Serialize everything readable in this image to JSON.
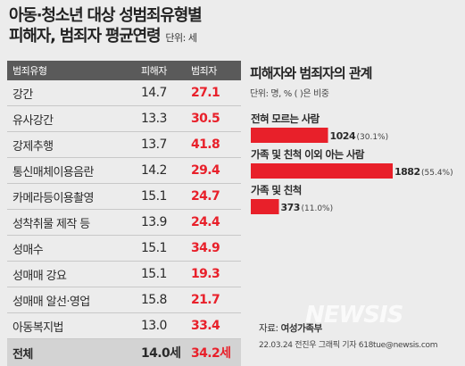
{
  "title": {
    "line1": "아동·청소년 대상 성범죄유형별",
    "line2": "피해자, 범죄자 평균연령",
    "unit": "단위: 세"
  },
  "table": {
    "headers": [
      "범죄유형",
      "피해자",
      "범죄자"
    ],
    "rows": [
      {
        "type": "강간",
        "victim": "14.7",
        "offender": "27.1"
      },
      {
        "type": "유사강간",
        "victim": "13.3",
        "offender": "30.5"
      },
      {
        "type": "강제추행",
        "victim": "13.7",
        "offender": "41.8"
      },
      {
        "type": "통신매체이용음란",
        "victim": "14.2",
        "offender": "29.4"
      },
      {
        "type": "카메라등이용촬영",
        "victim": "15.1",
        "offender": "24.7"
      },
      {
        "type": "성착취물 제작 등",
        "victim": "13.9",
        "offender": "24.4"
      },
      {
        "type": "성매수",
        "victim": "15.1",
        "offender": "34.9"
      },
      {
        "type": "성매매 강요",
        "victim": "15.1",
        "offender": "19.3"
      },
      {
        "type": "성매매 알선·영업",
        "victim": "15.8",
        "offender": "21.7"
      },
      {
        "type": "아동복지법",
        "victim": "13.0",
        "offender": "33.4"
      }
    ],
    "total": {
      "type": "전체",
      "victim": "14.0세",
      "offender": "34.2세"
    }
  },
  "chart_data": {
    "type": "bar",
    "title": "피해자와 범죄자의 관계",
    "subtitle": "단위: 명, % ( )은 비중",
    "categories": [
      "전혀 모르는 사람",
      "가족 및 친척 이외 아는 사람",
      "가족 및 친척"
    ],
    "values": [
      1024,
      1882,
      373
    ],
    "value_labels": [
      "1024",
      "1882",
      "373"
    ],
    "percent_labels": [
      "(30.1%)",
      "(55.4%)",
      "(11.0%)"
    ],
    "orientation": "horizontal",
    "bar_color": "#e8202a"
  },
  "source": {
    "prefix": "자료: ",
    "name": "여성가족부",
    "credit": "22.03.24 전진우 그래픽 기자 618tue@newsis.com",
    "watermark": "NEWSIS"
  }
}
